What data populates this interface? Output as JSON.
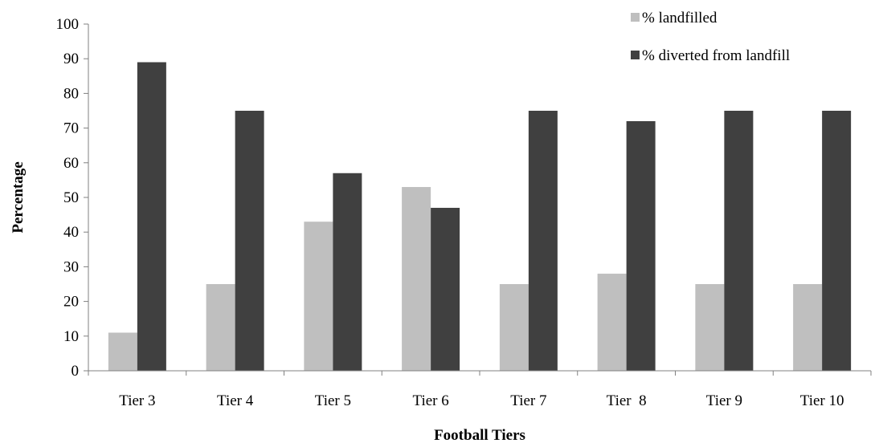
{
  "chart_data": {
    "type": "bar",
    "title": "",
    "xlabel": "Football Tiers",
    "ylabel": "Percentage",
    "categories": [
      "Tier 3",
      "Tier 4",
      "Tier 5",
      "Tier 6",
      "Tier 7",
      "Tier  8",
      "Tier 9",
      "Tier 10"
    ],
    "series": [
      {
        "name": "% landfilled",
        "values": [
          11,
          25,
          43,
          53,
          25,
          28,
          25,
          25
        ],
        "color": "#bfbfbf"
      },
      {
        "name": "% diverted from landfill",
        "values": [
          89,
          75,
          57,
          47,
          75,
          72,
          75,
          75
        ],
        "color": "#404040"
      }
    ],
    "ylim": [
      0,
      100
    ],
    "yticks": [
      0,
      10,
      20,
      30,
      40,
      50,
      60,
      70,
      80,
      90,
      100
    ],
    "grid": false,
    "legend_position": "top-right"
  }
}
